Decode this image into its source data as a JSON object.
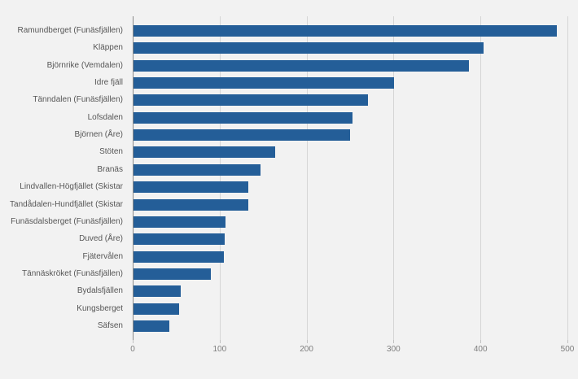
{
  "chart_data": {
    "type": "bar",
    "orientation": "horizontal",
    "title": "",
    "xlabel": "",
    "ylabel": "",
    "categories": [
      "Ramundberget (Funäsfjällen)",
      "Kläppen",
      "Björnrike (Vemdalen)",
      "Idre fjäll",
      "Tänndalen (Funäsfjällen)",
      "Lofsdalen",
      "Björnen (Åre)",
      "Stöten",
      "Branäs",
      "Lindvallen-Högfjället (Skistar",
      "Tandådalen-Hundfjället (Skistar",
      "Funäsdalsberget (Funäsfjällen)",
      "Duved (Åre)",
      "Fjätervålen",
      "Tännäskröket (Funäsfjällen)",
      "Bydalsfjällen",
      "Kungsberget",
      "Säfsen"
    ],
    "values": [
      487,
      403,
      386,
      300,
      270,
      252,
      249,
      163,
      146,
      132,
      132,
      106,
      105,
      104,
      89,
      54,
      52,
      41
    ],
    "xlim": [
      0,
      500
    ],
    "xticks": [
      "0",
      "100",
      "200",
      "300",
      "400",
      "500"
    ],
    "grid": true,
    "legend": false,
    "colors": {
      "bar": "#245e98",
      "background": "#f2f2f2",
      "gridline": "#d6d6d6",
      "axis_line": "#8a8a8a",
      "category_label": "#565656",
      "tick_label": "#7d7d7d"
    }
  }
}
